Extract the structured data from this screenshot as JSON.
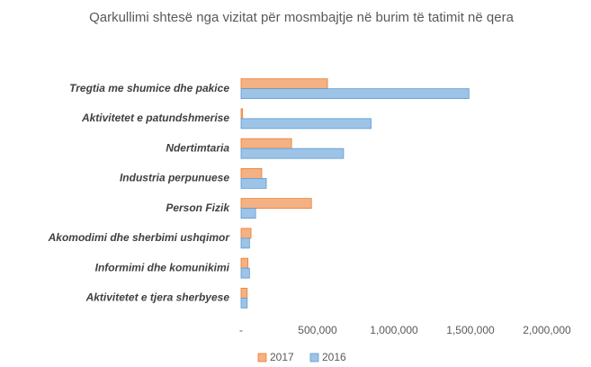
{
  "chart_data": {
    "type": "hbar",
    "title": "Qarkullimi  shtesë nga vizitat për mosmbajtje  në burim të tatimit në qera",
    "categories": [
      "Tregtia me shumice dhe pakice",
      "Aktivitetet e patundshmerise",
      "Ndertimtaria",
      "Industria perpunuese",
      "Person Fizik",
      "Akomodimi dhe sherbimi ushqimor",
      "Informimi dhe komunikimi",
      "Aktivitetet e tjera sherbyese"
    ],
    "series": [
      {
        "name": "2017",
        "color": "#f4b183",
        "values": [
          565000,
          10000,
          330000,
          135000,
          460000,
          65000,
          45000,
          40000
        ]
      },
      {
        "name": "2016",
        "color": "#9dc3e6",
        "values": [
          1490000,
          850000,
          670000,
          165000,
          95000,
          55000,
          55000,
          40000
        ]
      }
    ],
    "xlim": [
      0,
      2000000
    ],
    "xticks": [
      {
        "value": 0,
        "label": "-"
      },
      {
        "value": 500000,
        "label": "500,000"
      },
      {
        "value": 1000000,
        "label": "1,000,000"
      },
      {
        "value": 1500000,
        "label": "1,500,000"
      },
      {
        "value": 2000000,
        "label": "2,000,000"
      }
    ],
    "grid": false,
    "legend": "bottom"
  }
}
